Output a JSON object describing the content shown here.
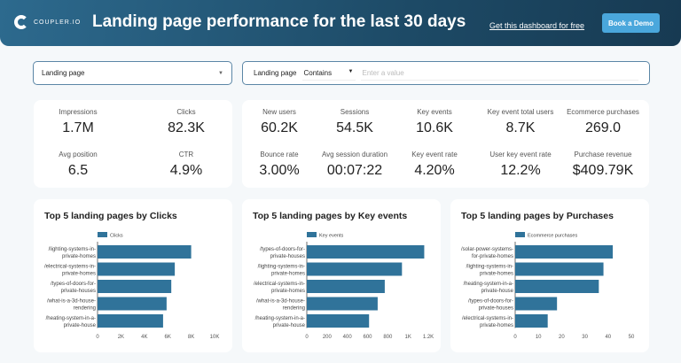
{
  "header": {
    "logo": "COUPLER.IO",
    "title": "Landing page performance for the last 30 days",
    "free_link": "Get this dashboard for free",
    "demo_button": "Book a Demo"
  },
  "filters": {
    "dimension_select": "Landing page",
    "filter_label": "Landing page",
    "operator": "Contains",
    "value_placeholder": "Enter a value"
  },
  "kpis_left": [
    {
      "label": "Impressions",
      "value": "1.7M"
    },
    {
      "label": "Clicks",
      "value": "82.3K"
    },
    {
      "label": "Avg position",
      "value": "6.5"
    },
    {
      "label": "CTR",
      "value": "4.9%"
    }
  ],
  "kpis_right": [
    {
      "label": "New users",
      "value": "60.2K"
    },
    {
      "label": "Sessions",
      "value": "54.5K"
    },
    {
      "label": "Key events",
      "value": "10.6K"
    },
    {
      "label": "Key event total users",
      "value": "8.7K"
    },
    {
      "label": "Ecommerce purchases",
      "value": "269.0"
    },
    {
      "label": "Bounce rate",
      "value": "3.00%"
    },
    {
      "label": "Avg session duration",
      "value": "00:07:22"
    },
    {
      "label": "Key event rate",
      "value": "4.20%"
    },
    {
      "label": "User key event rate",
      "value": "12.2%"
    },
    {
      "label": "Purchase revenue",
      "value": "$409.79K"
    }
  ],
  "colors": {
    "bar": "#30739a",
    "header": "#1d4a66",
    "accent": "#4aa7dc"
  },
  "chart_data": [
    {
      "type": "bar",
      "orientation": "horizontal",
      "title": "Top 5 landing pages by Clicks",
      "legend": "Clicks",
      "categories": [
        [
          "/lighting-systems-in-",
          "private-homes"
        ],
        [
          "/electrical-systems-in-",
          "private-homes"
        ],
        [
          "/types-of-doors-for-",
          "private-houses"
        ],
        [
          "/what-is-a-3d-house-",
          "rendering"
        ],
        [
          "/heating-system-in-a-",
          "private-house"
        ]
      ],
      "values": [
        8000,
        6600,
        6300,
        5900,
        5600
      ],
      "xlim": [
        0,
        10000
      ],
      "ticks": [
        0,
        2000,
        4000,
        6000,
        8000,
        10000
      ],
      "tick_labels": [
        "0",
        "2K",
        "4K",
        "6K",
        "8K",
        "10K"
      ]
    },
    {
      "type": "bar",
      "orientation": "horizontal",
      "title": "Top 5 landing pages by Key events",
      "legend": "Key events",
      "categories": [
        [
          "/types-of-doors-for-",
          "private-houses"
        ],
        [
          "/lighting-systems-in-",
          "private-homes"
        ],
        [
          "/electrical-systems-in-",
          "private-homes"
        ],
        [
          "/what-is-a-3d-house-",
          "rendering"
        ],
        [
          "/heating-system-in-a-",
          "private-house"
        ]
      ],
      "values": [
        1160,
        940,
        770,
        700,
        615
      ],
      "xlim": [
        0,
        1200
      ],
      "ticks": [
        0,
        200,
        400,
        600,
        800,
        1000,
        1200
      ],
      "tick_labels": [
        "0",
        "200",
        "400",
        "600",
        "800",
        "1K",
        "1.2K"
      ]
    },
    {
      "type": "bar",
      "orientation": "horizontal",
      "title": "Top 5 landing pages by Purchases",
      "legend": "Ecommerce purchases",
      "categories": [
        [
          "/solar-power-systems-",
          "for-private-homes"
        ],
        [
          "/lighting-systems-in-",
          "private-homes"
        ],
        [
          "/heating-system-in-a-",
          "private-house"
        ],
        [
          "/types-of-doors-for-",
          "private-houses"
        ],
        [
          "/electrical-systems-in-",
          "private-homes"
        ]
      ],
      "values": [
        42,
        38,
        36,
        18,
        14
      ],
      "xlim": [
        0,
        50
      ],
      "ticks": [
        0,
        10,
        20,
        30,
        40,
        50
      ],
      "tick_labels": [
        "0",
        "10",
        "20",
        "30",
        "40",
        "50"
      ]
    }
  ]
}
